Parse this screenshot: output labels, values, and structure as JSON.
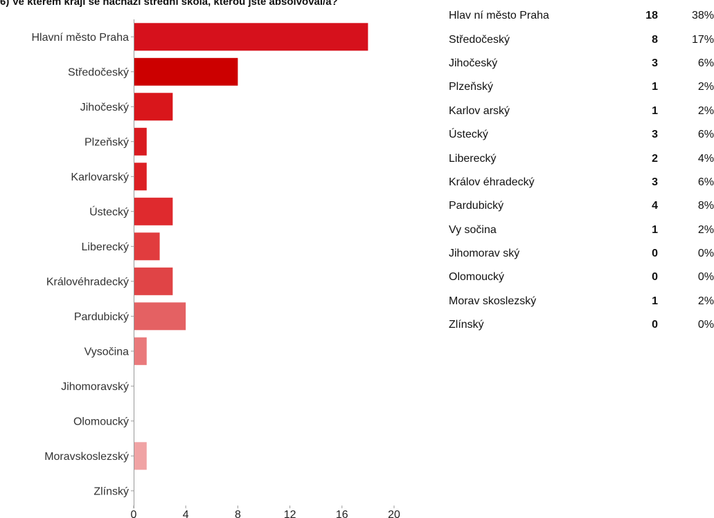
{
  "question": "6) Ve kterém kraji se nachází střední škola, kterou jste absolvoval/a?",
  "chart_data": {
    "type": "bar",
    "orientation": "horizontal",
    "categories": [
      "Hlavní město Praha",
      "Středočeský",
      "Jihočeský",
      "Plzeňský",
      "Karlovarský",
      "Ústecký",
      "Liberecký",
      "Královéhradecký",
      "Pardubický",
      "Vysočina",
      "Jihomoravský",
      "Olomoucký",
      "Moravskoslezský",
      "Zlínský"
    ],
    "values": [
      18,
      8,
      3,
      1,
      1,
      3,
      2,
      3,
      4,
      1,
      0,
      0,
      1,
      0
    ],
    "colors": [
      "#d6111c",
      "#cc0000",
      "#d9161b",
      "#d91b20",
      "#dc2024",
      "#df2a2e",
      "#e13c3e",
      "#e04446",
      "#e46163",
      "#e9797b",
      "#ec8a8c",
      "#ee9597",
      "#f0a3a4",
      "#f3b3b4"
    ],
    "xlim": [
      0,
      20
    ],
    "xticks": [
      0,
      4,
      8,
      12,
      16,
      20
    ],
    "grid": false,
    "legend": "none"
  },
  "summary": [
    {
      "name": "Hlav ní město Praha",
      "count": "18",
      "percent": "38%"
    },
    {
      "name": "Středočeský",
      "count": "8",
      "percent": "17%"
    },
    {
      "name": "Jihočeský",
      "count": "3",
      "percent": "6%"
    },
    {
      "name": "Plzeňský",
      "count": "1",
      "percent": "2%"
    },
    {
      "name": "Karlov arský",
      "count": "1",
      "percent": "2%"
    },
    {
      "name": "Ústecký",
      "count": "3",
      "percent": "6%"
    },
    {
      "name": "Liberecký",
      "count": "2",
      "percent": "4%"
    },
    {
      "name": "Králov éhradecký",
      "count": "3",
      "percent": "6%"
    },
    {
      "name": "Pardubický",
      "count": "4",
      "percent": "8%"
    },
    {
      "name": "Vy sočina",
      "count": "1",
      "percent": "2%"
    },
    {
      "name": "Jihomorav ský",
      "count": "0",
      "percent": "0%"
    },
    {
      "name": "Olomoucký",
      "count": "0",
      "percent": "0%"
    },
    {
      "name": "Morav skoslezský",
      "count": "1",
      "percent": "2%"
    },
    {
      "name": "Zlínský",
      "count": "0",
      "percent": "0%"
    }
  ]
}
